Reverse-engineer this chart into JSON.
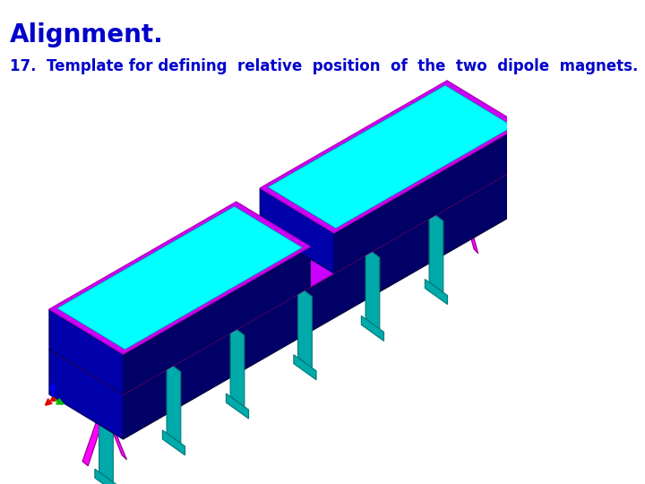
{
  "title": "Alignment.",
  "subtitle": "17.  Template for defining  relative  position  of  the  two  dipole  magnets.",
  "title_color": "#0000CC",
  "subtitle_color": "#0000CC",
  "title_fontsize": 20,
  "subtitle_fontsize": 12,
  "background_color": "#FFFFFF",
  "colors": {
    "magenta": "#CC00FF",
    "magenta2": "#BB00BB",
    "blue_dark": "#0000AA",
    "blue_mid": "#1111BB",
    "blue_body": "#2020CC",
    "cyan": "#00FFFF",
    "cyan2": "#00DDDD",
    "teal": "#00AAAA",
    "teal_dark": "#007777",
    "pink_brace": "#FF00FF",
    "navy": "#000066",
    "very_dark": "#000033"
  }
}
